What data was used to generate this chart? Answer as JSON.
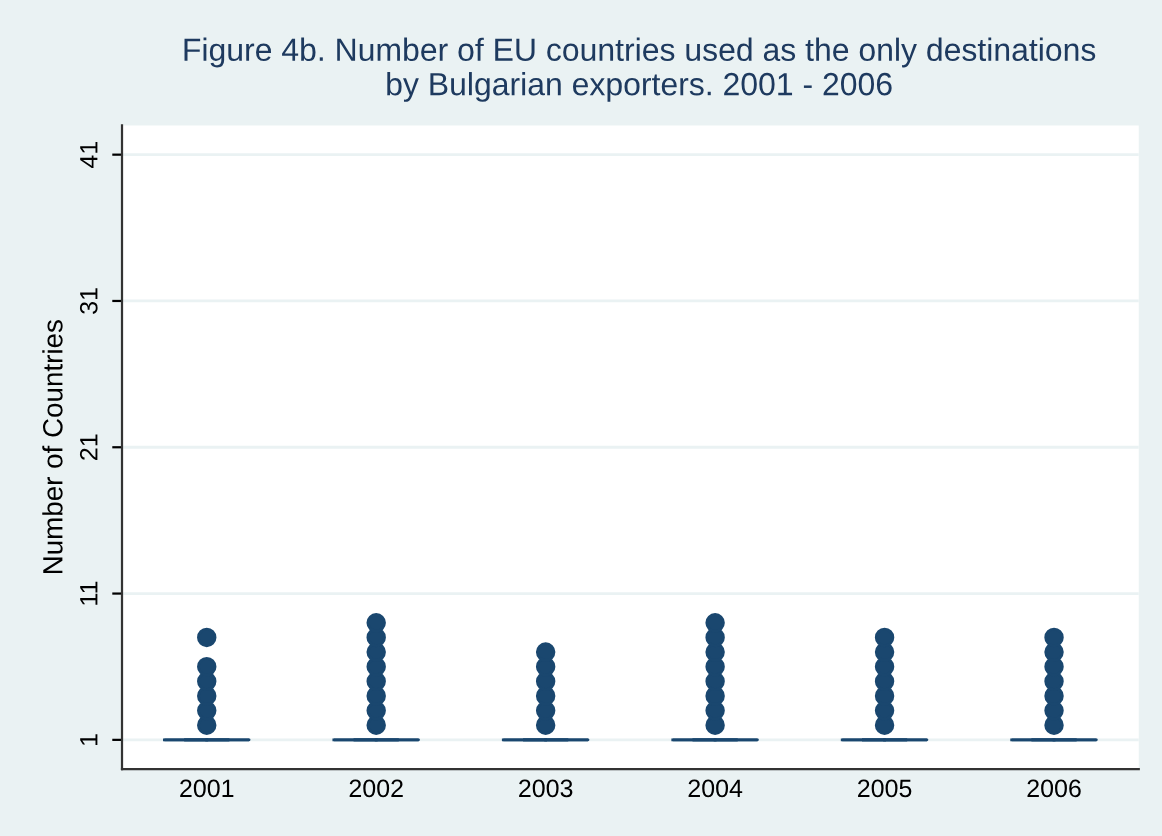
{
  "chart_data": {
    "type": "box",
    "title": "Figure 4b. Number of EU countries used as the only destinations\nby Bulgarian exporters. 2001 - 2006",
    "ylabel": "Number of Countries",
    "categories": [
      "2001",
      "2002",
      "2003",
      "2004",
      "2005",
      "2006"
    ],
    "color": "#1a476f",
    "boxes": [
      {
        "low": 1,
        "q1": 1,
        "median": 1,
        "q3": 1,
        "high": 1,
        "outliers": [
          2,
          3,
          4,
          5,
          6,
          8
        ]
      },
      {
        "low": 1,
        "q1": 1,
        "median": 1,
        "q3": 1,
        "high": 1,
        "outliers": [
          2,
          3,
          4,
          5,
          6,
          7,
          8,
          9
        ]
      },
      {
        "low": 1,
        "q1": 1,
        "median": 1,
        "q3": 1,
        "high": 1,
        "outliers": [
          2,
          3,
          4,
          5,
          6,
          7
        ]
      },
      {
        "low": 1,
        "q1": 1,
        "median": 1,
        "q3": 1,
        "high": 1,
        "outliers": [
          2,
          3,
          4,
          5,
          6,
          7,
          8,
          9
        ]
      },
      {
        "low": 1,
        "q1": 1,
        "median": 1,
        "q3": 1,
        "high": 1,
        "outliers": [
          2,
          3,
          4,
          5,
          6,
          7,
          8
        ]
      },
      {
        "low": 1,
        "q1": 1,
        "median": 1,
        "q3": 1,
        "high": 1,
        "outliers": [
          2,
          3,
          4,
          5,
          6,
          7,
          8
        ]
      }
    ],
    "ylim": [
      -1,
      43
    ],
    "yticks": [
      1,
      11,
      21,
      31,
      41
    ],
    "grid": "y"
  }
}
